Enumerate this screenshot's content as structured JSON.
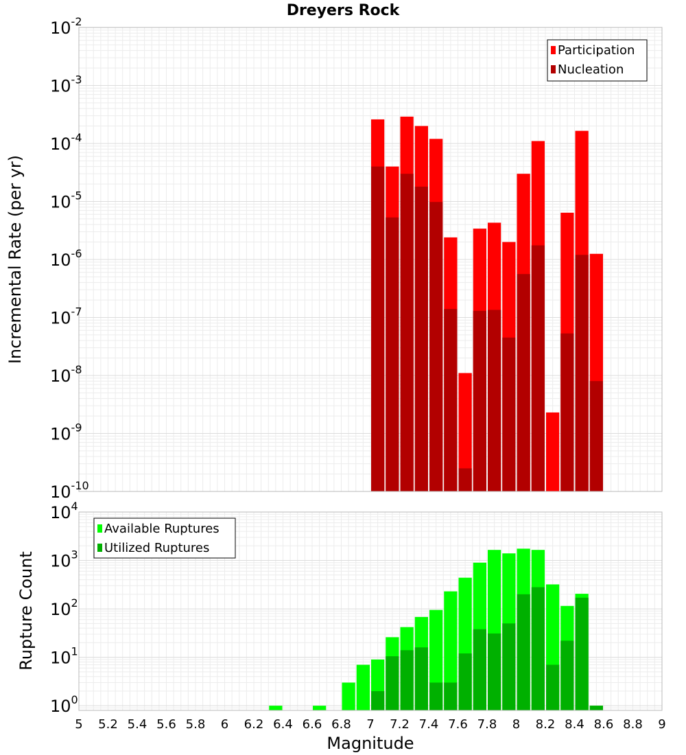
{
  "chart_data": {
    "title": "Dreyers Rock",
    "xlabel": "Magnitude",
    "xlim": [
      5,
      9
    ],
    "x_ticks": [
      "5",
      "5.2",
      "5.4",
      "5.6",
      "5.8",
      "6",
      "6.2",
      "6.4",
      "6.6",
      "6.8",
      "7",
      "7.2",
      "7.4",
      "7.6",
      "7.8",
      "8",
      "8.2",
      "8.4",
      "8.6",
      "8.8",
      "9"
    ],
    "bin_width": 0.1,
    "panels": [
      {
        "type": "bar",
        "ylabel": "Incremental Rate (per yr)",
        "yscale": "log",
        "ylim": [
          1e-10,
          0.01
        ],
        "y_ticks": [
          {
            "base": "10",
            "exp": "-10",
            "value": 1e-10
          },
          {
            "base": "10",
            "exp": "-9",
            "value": 1e-09
          },
          {
            "base": "10",
            "exp": "-8",
            "value": 1e-08
          },
          {
            "base": "10",
            "exp": "-7",
            "value": 1e-07
          },
          {
            "base": "10",
            "exp": "-6",
            "value": 1e-06
          },
          {
            "base": "10",
            "exp": "-5",
            "value": 1e-05
          },
          {
            "base": "10",
            "exp": "-4",
            "value": 0.0001
          },
          {
            "base": "10",
            "exp": "-3",
            "value": 0.001
          },
          {
            "base": "10",
            "exp": "-2",
            "value": 0.01
          }
        ],
        "legend_position": "top-right",
        "series": [
          {
            "name": "Participation",
            "color": "#ff0000",
            "x": [
              7.05,
              7.15,
              7.25,
              7.35,
              7.45,
              7.55,
              7.65,
              7.75,
              7.85,
              7.95,
              8.05,
              8.15,
              8.25,
              8.35,
              8.45,
              8.55
            ],
            "values": [
              0.00026,
              4e-05,
              0.00029,
              0.0002,
              0.00012,
              2.4e-06,
              1.1e-08,
              3.4e-06,
              4.3e-06,
              2e-06,
              3e-05,
              0.00011,
              2.3e-09,
              6.4e-06,
              0.000165,
              1.25e-06
            ]
          },
          {
            "name": "Nucleation",
            "color": "#b20000",
            "x": [
              7.05,
              7.15,
              7.25,
              7.35,
              7.45,
              7.55,
              7.65,
              7.75,
              7.85,
              7.95,
              8.05,
              8.15,
              8.25,
              8.35,
              8.45,
              8.55
            ],
            "values": [
              4e-05,
              5.3e-06,
              3e-05,
              1.8e-05,
              9.8e-06,
              1.4e-07,
              2.5e-10,
              1.3e-07,
              1.35e-07,
              4.5e-08,
              5.6e-07,
              1.75e-06,
              0,
              5.3e-08,
              1.2e-06,
              8e-09
            ]
          }
        ]
      },
      {
        "type": "bar",
        "ylabel": "Rupture Count",
        "yscale": "log",
        "ylim": [
          0.8,
          10000
        ],
        "y_ticks": [
          {
            "base": "10",
            "exp": "0",
            "value": 1
          },
          {
            "base": "10",
            "exp": "1",
            "value": 10
          },
          {
            "base": "10",
            "exp": "2",
            "value": 100
          },
          {
            "base": "10",
            "exp": "3",
            "value": 1000
          },
          {
            "base": "10",
            "exp": "4",
            "value": 10000
          }
        ],
        "legend_position": "top-left",
        "series": [
          {
            "name": "Available Ruptures",
            "color": "#00ff00",
            "x": [
              6.35,
              6.65,
              6.85,
              6.95,
              7.05,
              7.15,
              7.25,
              7.35,
              7.45,
              7.55,
              7.65,
              7.75,
              7.85,
              7.95,
              8.05,
              8.15,
              8.25,
              8.35,
              8.45,
              8.55
            ],
            "values": [
              1,
              1,
              3,
              7,
              9,
              26,
              42,
              68,
              95,
              230,
              440,
              900,
              1650,
              1400,
              1750,
              1650,
              320,
              115,
              205,
              1
            ]
          },
          {
            "name": "Utilized Ruptures",
            "color": "#00b000",
            "x": [
              6.35,
              6.65,
              6.85,
              6.95,
              7.05,
              7.15,
              7.25,
              7.35,
              7.45,
              7.55,
              7.65,
              7.75,
              7.85,
              7.95,
              8.05,
              8.15,
              8.25,
              8.35,
              8.45,
              8.55
            ],
            "values": [
              0,
              0,
              0,
              0,
              2,
              10.5,
              14,
              16,
              3,
              3,
              12,
              38,
              31,
              50,
              200,
              280,
              7,
              22,
              170,
              1
            ]
          }
        ]
      }
    ]
  }
}
